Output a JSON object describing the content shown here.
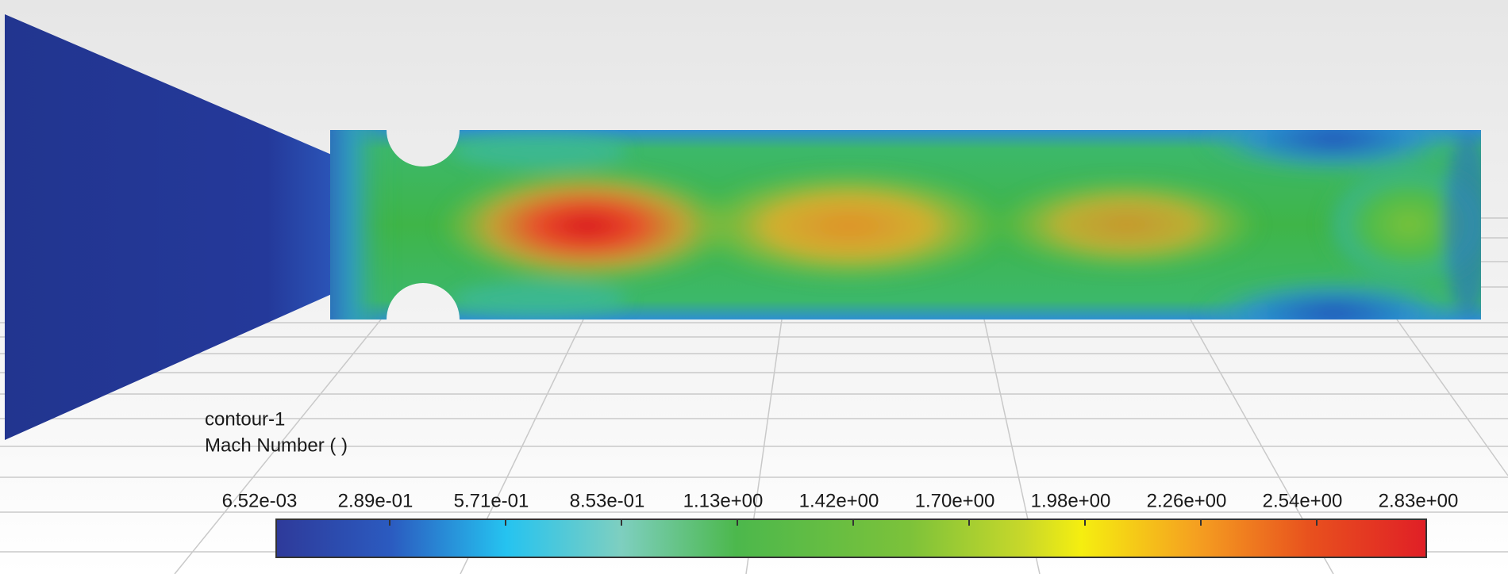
{
  "legend": {
    "title": "contour-1",
    "variable": "Mach Number (  )",
    "ticks": [
      "6.52e-03",
      "2.89e-01",
      "5.71e-01",
      "8.53e-01",
      "1.13e+00",
      "1.42e+00",
      "1.70e+00",
      "1.98e+00",
      "2.26e+00",
      "2.54e+00",
      "2.83e+00"
    ]
  }
}
